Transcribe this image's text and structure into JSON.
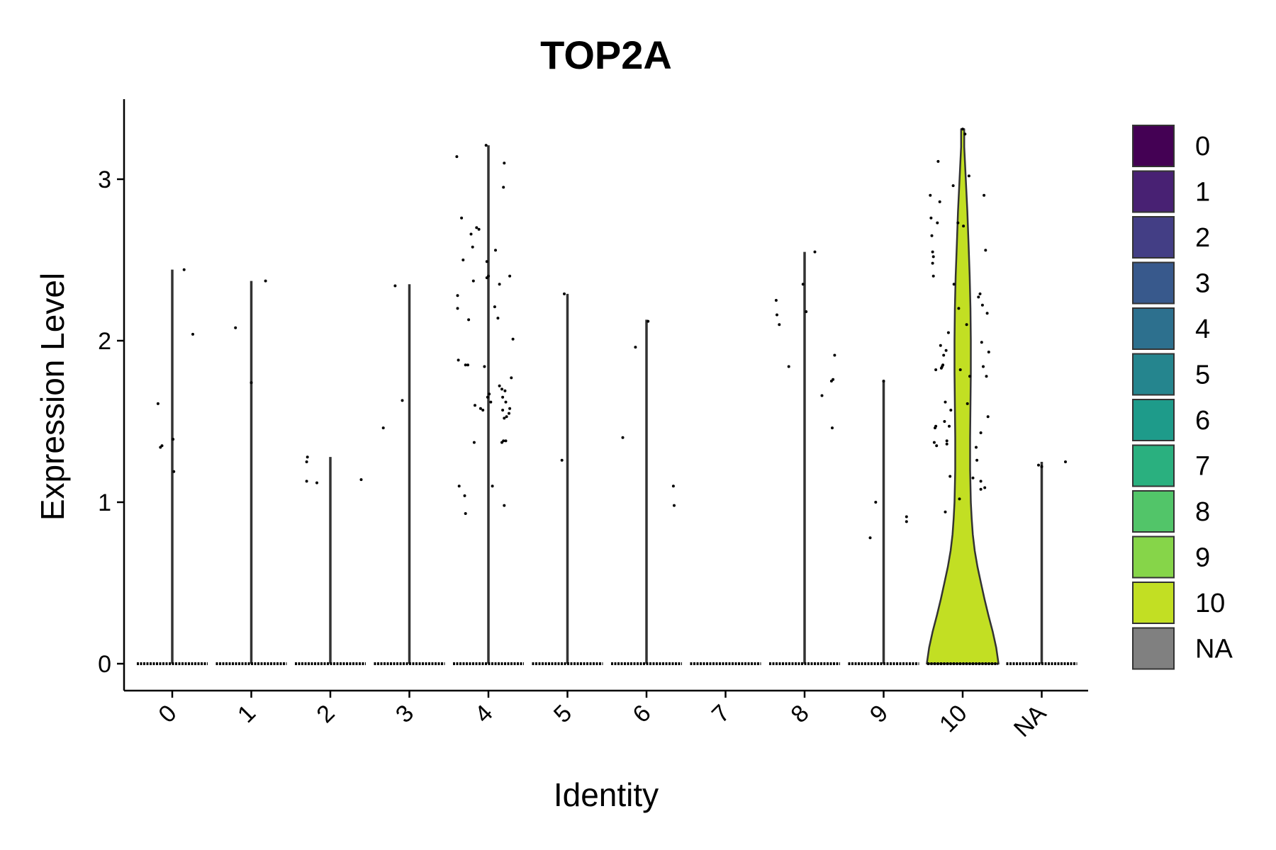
{
  "chart_data": {
    "type": "violin",
    "title": "TOP2A",
    "xlabel": "Identity",
    "ylabel": "Expression Level",
    "ylim": [
      -0.17,
      3.5
    ],
    "yticks": [
      0,
      1,
      2,
      3
    ],
    "ytick_labels": [
      "0",
      "1",
      "2",
      "3"
    ],
    "categories": [
      "0",
      "1",
      "2",
      "3",
      "4",
      "5",
      "6",
      "7",
      "8",
      "9",
      "10",
      "NA"
    ],
    "legend": {
      "position": "right",
      "entries": [
        {
          "label": "0",
          "color": "#440154"
        },
        {
          "label": "1",
          "color": "#482173"
        },
        {
          "label": "2",
          "color": "#433e85"
        },
        {
          "label": "3",
          "color": "#38598c"
        },
        {
          "label": "4",
          "color": "#2d708e"
        },
        {
          "label": "5",
          "color": "#25858e"
        },
        {
          "label": "6",
          "color": "#1e9b8a"
        },
        {
          "label": "7",
          "color": "#2ab07f"
        },
        {
          "label": "8",
          "color": "#52c569"
        },
        {
          "label": "9",
          "color": "#86d549"
        },
        {
          "label": "10",
          "color": "#c2df23"
        },
        {
          "label": "NA",
          "color": "#808080"
        }
      ]
    },
    "series": [
      {
        "name": "0",
        "max": 2.44,
        "points": [
          [
            -0.18,
            1.61
          ],
          [
            -0.15,
            1.34
          ],
          [
            -0.13,
            1.35
          ],
          [
            0.01,
            1.39
          ],
          [
            0.02,
            1.19
          ],
          [
            0.15,
            2.44
          ],
          [
            0.26,
            2.04
          ]
        ]
      },
      {
        "name": "1",
        "max": 2.37,
        "points": [
          [
            -0.2,
            2.08
          ],
          [
            0.0,
            1.74
          ],
          [
            0.18,
            2.37
          ]
        ]
      },
      {
        "name": "2",
        "max": 1.28,
        "points": [
          [
            -0.3,
            1.13
          ],
          [
            -0.3,
            1.25
          ],
          [
            -0.29,
            1.28
          ],
          [
            -0.17,
            1.12
          ],
          [
            0.39,
            1.14
          ]
        ]
      },
      {
        "name": "3",
        "max": 2.35,
        "points": [
          [
            -0.33,
            1.46
          ],
          [
            -0.18,
            2.34
          ],
          [
            -0.09,
            1.63
          ]
        ]
      },
      {
        "name": "4",
        "max": 3.21,
        "points": [
          [
            -0.4,
            3.14
          ],
          [
            -0.39,
            2.28
          ],
          [
            -0.39,
            2.2
          ],
          [
            -0.38,
            1.88
          ],
          [
            -0.37,
            1.1
          ],
          [
            -0.34,
            2.76
          ],
          [
            -0.32,
            2.5
          ],
          [
            -0.3,
            1.04
          ],
          [
            -0.29,
            0.93
          ],
          [
            -0.29,
            1.85
          ],
          [
            -0.26,
            1.85
          ],
          [
            -0.25,
            2.13
          ],
          [
            -0.22,
            2.66
          ],
          [
            -0.2,
            2.58
          ],
          [
            -0.19,
            2.37
          ],
          [
            -0.18,
            1.37
          ],
          [
            -0.17,
            1.6
          ],
          [
            -0.15,
            2.7
          ],
          [
            -0.12,
            2.69
          ],
          [
            -0.1,
            1.58
          ],
          [
            -0.07,
            1.57
          ],
          [
            -0.05,
            1.84
          ],
          [
            -0.03,
            3.21
          ],
          [
            -0.02,
            2.49
          ],
          [
            -0.01,
            1.65
          ],
          [
            0.0,
            2.4
          ],
          [
            0.01,
            1.67
          ],
          [
            0.03,
            1.62
          ],
          [
            0.05,
            1.1
          ],
          [
            0.08,
            2.21
          ],
          [
            0.09,
            2.56
          ],
          [
            0.12,
            2.14
          ],
          [
            0.14,
            1.72
          ],
          [
            0.14,
            2.35
          ],
          [
            0.17,
            1.37
          ],
          [
            0.17,
            1.7
          ],
          [
            0.18,
            1.57
          ],
          [
            0.18,
            1.65
          ],
          [
            0.19,
            2.95
          ],
          [
            0.19,
            1.38
          ],
          [
            0.2,
            3.1
          ],
          [
            0.21,
            1.69
          ],
          [
            0.22,
            1.38
          ],
          [
            0.22,
            1.62
          ],
          [
            0.23,
            1.53
          ],
          [
            0.26,
            1.55
          ],
          [
            0.27,
            1.58
          ],
          [
            0.27,
            2.4
          ],
          [
            0.29,
            1.77
          ],
          [
            0.31,
            2.01
          ],
          [
            0.2,
            1.52
          ],
          [
            0.2,
            0.98
          ],
          [
            -0.02,
            2.39
          ]
        ]
      },
      {
        "name": "5",
        "max": 2.29,
        "points": [
          [
            -0.07,
            1.26
          ],
          [
            -0.04,
            2.29
          ]
        ]
      },
      {
        "name": "6",
        "max": 2.13,
        "points": [
          [
            -0.3,
            1.4
          ],
          [
            -0.14,
            1.96
          ],
          [
            0.02,
            2.12
          ],
          [
            0.34,
            1.1
          ],
          [
            0.35,
            0.98
          ]
        ]
      },
      {
        "name": "7",
        "max": 0,
        "points": []
      },
      {
        "name": "8",
        "max": 2.55,
        "points": [
          [
            -0.36,
            2.25
          ],
          [
            -0.35,
            2.16
          ],
          [
            -0.32,
            2.1
          ],
          [
            -0.2,
            1.84
          ],
          [
            -0.02,
            2.35
          ],
          [
            0.02,
            2.18
          ],
          [
            0.13,
            2.55
          ],
          [
            0.22,
            1.66
          ],
          [
            0.34,
            1.75
          ],
          [
            0.36,
            1.76
          ],
          [
            0.38,
            1.91
          ],
          [
            0.35,
            1.46
          ]
        ]
      },
      {
        "name": "9",
        "max": 1.75,
        "points": [
          [
            -0.17,
            0.78
          ],
          [
            -0.1,
            1.0
          ],
          [
            0.0,
            1.75
          ],
          [
            0.29,
            0.91
          ],
          [
            0.29,
            0.88
          ]
        ]
      },
      {
        "name": "10",
        "max": 3.31,
        "points": [
          [
            -0.41,
            2.9
          ],
          [
            -0.4,
            2.76
          ],
          [
            -0.39,
            2.65
          ],
          [
            -0.38,
            2.55
          ],
          [
            -0.38,
            2.48
          ],
          [
            -0.37,
            2.4
          ],
          [
            -0.37,
            2.52
          ],
          [
            -0.36,
            1.37
          ],
          [
            -0.35,
            1.46
          ],
          [
            -0.34,
            1.47
          ],
          [
            -0.34,
            1.82
          ],
          [
            -0.33,
            1.35
          ],
          [
            -0.32,
            2.73
          ],
          [
            -0.31,
            3.11
          ],
          [
            -0.29,
            2.86
          ],
          [
            -0.28,
            1.97
          ],
          [
            -0.27,
            1.83
          ],
          [
            -0.26,
            1.84
          ],
          [
            -0.25,
            1.85
          ],
          [
            -0.24,
            1.91
          ],
          [
            -0.23,
            1.5
          ],
          [
            -0.22,
            1.62
          ],
          [
            -0.22,
            0.94
          ],
          [
            -0.21,
            1.94
          ],
          [
            -0.2,
            1.38
          ],
          [
            -0.2,
            1.36
          ],
          [
            -0.18,
            2.05
          ],
          [
            -0.17,
            1.47
          ],
          [
            -0.16,
            1.16
          ],
          [
            -0.15,
            1.57
          ],
          [
            -0.12,
            2.96
          ],
          [
            -0.11,
            2.35
          ],
          [
            -0.06,
            2.73
          ],
          [
            -0.05,
            2.2
          ],
          [
            -0.04,
            1.02
          ],
          [
            -0.03,
            1.82
          ],
          [
            0.0,
            3.31
          ],
          [
            0.01,
            2.71
          ],
          [
            0.03,
            3.28
          ],
          [
            0.05,
            2.1
          ],
          [
            0.06,
            1.61
          ],
          [
            0.08,
            3.02
          ],
          [
            0.09,
            1.78
          ],
          [
            0.13,
            1.15
          ],
          [
            0.17,
            1.34
          ],
          [
            0.18,
            1.26
          ],
          [
            0.2,
            2.27
          ],
          [
            0.22,
            2.29
          ],
          [
            0.23,
            1.08
          ],
          [
            0.23,
            1.13
          ],
          [
            0.23,
            1.43
          ],
          [
            0.24,
            1.99
          ],
          [
            0.25,
            2.22
          ],
          [
            0.26,
            1.84
          ],
          [
            0.27,
            2.9
          ],
          [
            0.28,
            1.09
          ],
          [
            0.29,
            2.56
          ],
          [
            0.3,
            1.78
          ],
          [
            0.31,
            2.17
          ],
          [
            0.32,
            1.53
          ],
          [
            0.33,
            1.93
          ]
        ]
      },
      {
        "name": "NA",
        "max": 1.25,
        "points": [
          [
            -0.04,
            1.23
          ],
          [
            0.0,
            1.22
          ],
          [
            0.3,
            1.25
          ]
        ]
      }
    ],
    "violin_10_density": [
      [
        0.0,
        0.92
      ],
      [
        0.1,
        0.86
      ],
      [
        0.2,
        0.77
      ],
      [
        0.3,
        0.66
      ],
      [
        0.4,
        0.56
      ],
      [
        0.5,
        0.47
      ],
      [
        0.6,
        0.38
      ],
      [
        0.7,
        0.31
      ],
      [
        0.8,
        0.26
      ],
      [
        0.9,
        0.23
      ],
      [
        1.0,
        0.21
      ],
      [
        1.1,
        0.2
      ],
      [
        1.2,
        0.19
      ],
      [
        1.4,
        0.19
      ],
      [
        1.6,
        0.2
      ],
      [
        1.8,
        0.21
      ],
      [
        2.0,
        0.21
      ],
      [
        2.2,
        0.2
      ],
      [
        2.4,
        0.18
      ],
      [
        2.6,
        0.15
      ],
      [
        2.8,
        0.12
      ],
      [
        3.0,
        0.08
      ],
      [
        3.2,
        0.04
      ],
      [
        3.31,
        0.04
      ]
    ]
  }
}
